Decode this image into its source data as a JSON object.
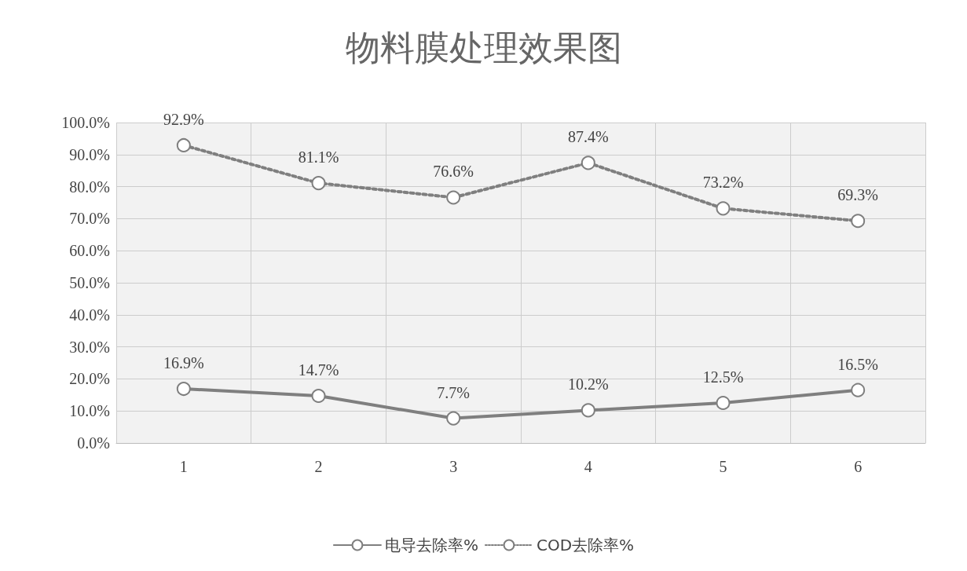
{
  "chart_data": {
    "type": "line",
    "title": "物料膜处理效果图",
    "categories": [
      "1",
      "2",
      "3",
      "4",
      "5",
      "6"
    ],
    "series": [
      {
        "name": "电导去除率%",
        "color": "#7f7f7f",
        "line_style": "solid",
        "values": [
          16.9,
          14.7,
          7.7,
          10.2,
          12.5,
          16.5
        ],
        "value_labels": [
          "16.9%",
          "14.7%",
          "7.7%",
          "10.2%",
          "12.5%",
          "16.5%"
        ]
      },
      {
        "name": "COD去除率%",
        "color": "#7f7f7f",
        "line_style": "dotted",
        "values": [
          92.9,
          81.1,
          76.6,
          87.4,
          73.2,
          69.3
        ],
        "value_labels": [
          "92.9%",
          "81.1%",
          "76.6%",
          "87.4%",
          "73.2%",
          "69.3%"
        ]
      }
    ],
    "ylim": [
      0,
      100
    ],
    "yticks": [
      {
        "value": 0,
        "label": "0.0%"
      },
      {
        "value": 10,
        "label": "10.0%"
      },
      {
        "value": 20,
        "label": "20.0%"
      },
      {
        "value": 30,
        "label": "30.0%"
      },
      {
        "value": 40,
        "label": "40.0%"
      },
      {
        "value": 50,
        "label": "50.0%"
      },
      {
        "value": 60,
        "label": "60.0%"
      },
      {
        "value": 70,
        "label": "70.0%"
      },
      {
        "value": 80,
        "label": "80.0%"
      },
      {
        "value": 90,
        "label": "90.0%"
      },
      {
        "value": 100,
        "label": "100.0%"
      }
    ],
    "grid": true,
    "legend": "bottom",
    "marker": "circle"
  }
}
